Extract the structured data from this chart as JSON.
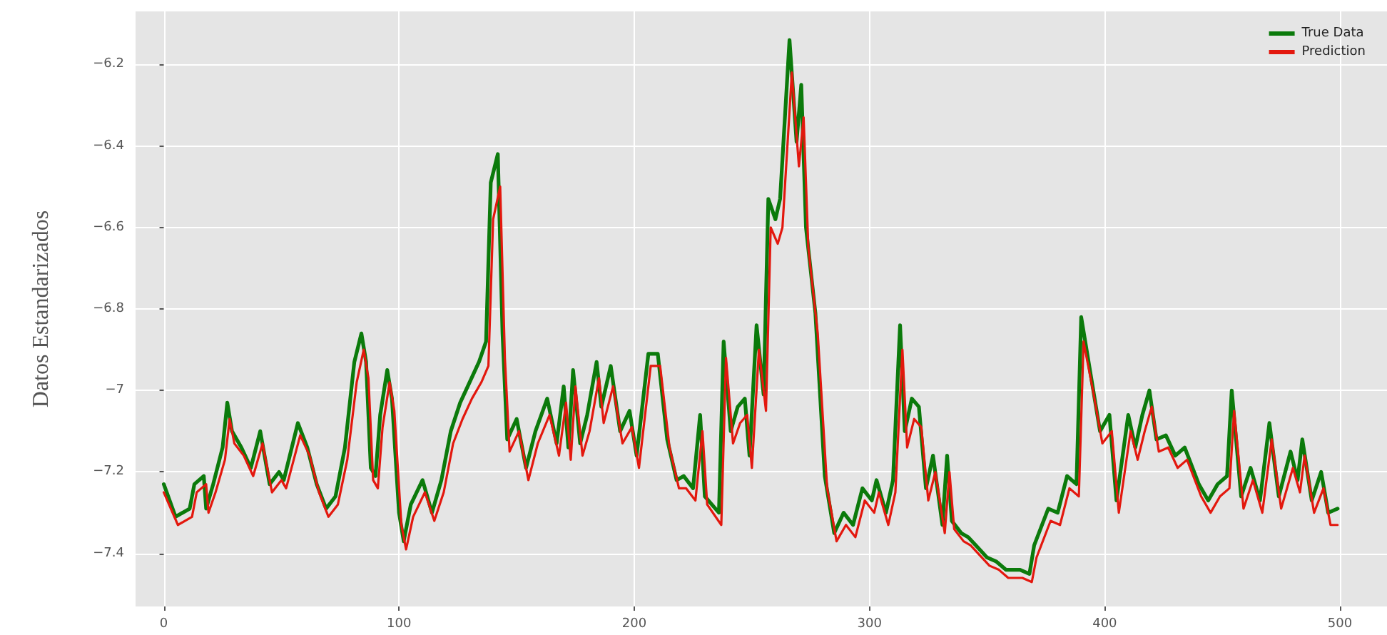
{
  "chart_data": {
    "type": "line",
    "ylabel": "Datos Estandarizados",
    "xlim": [
      -12,
      520
    ],
    "ylim": [
      -7.53,
      -6.07
    ],
    "xticks": [
      0,
      100,
      200,
      300,
      400,
      500
    ],
    "yticks": [
      -7.4,
      -7.2,
      -7.0,
      -6.8,
      -6.6,
      -6.4,
      -6.2
    ],
    "grid": true,
    "legend": "top right",
    "marker": "none",
    "line_style": "solid",
    "series": [
      {
        "name": "True Data",
        "color": "#0b7a0b",
        "x": [
          0,
          5,
          11,
          13,
          17,
          18,
          21,
          25,
          27,
          29,
          33,
          37,
          41,
          45,
          49,
          51,
          57,
          61,
          65,
          69,
          73,
          77,
          81,
          84,
          86,
          88,
          90,
          92,
          95,
          97,
          100,
          102,
          105,
          110,
          114,
          118,
          122,
          126,
          130,
          134,
          137,
          139,
          142,
          144,
          146,
          150,
          154,
          158,
          163,
          167,
          170,
          172,
          174,
          177,
          180,
          184,
          186,
          190,
          194,
          198,
          201,
          206,
          210,
          214,
          218,
          221,
          225,
          228,
          230,
          236,
          238,
          241,
          244,
          247,
          249,
          252,
          255,
          257,
          260,
          262,
          266,
          269,
          271,
          273,
          277,
          281,
          285,
          289,
          293,
          297,
          301,
          303,
          307,
          310,
          313,
          315,
          318,
          321,
          324,
          327,
          331,
          333,
          335,
          339,
          342,
          350,
          354,
          358,
          364,
          368,
          370,
          376,
          380,
          384,
          388,
          390,
          394,
          398,
          402,
          405,
          410,
          413,
          416,
          419,
          422,
          426,
          430,
          434,
          440,
          444,
          448,
          452,
          454,
          458,
          462,
          466,
          470,
          474,
          479,
          482,
          484,
          488,
          492,
          495,
          499
        ],
        "values": [
          -7.23,
          -7.31,
          -7.29,
          -7.23,
          -7.21,
          -7.29,
          -7.23,
          -7.14,
          -7.03,
          -7.1,
          -7.14,
          -7.19,
          -7.1,
          -7.23,
          -7.2,
          -7.22,
          -7.08,
          -7.14,
          -7.23,
          -7.29,
          -7.26,
          -7.14,
          -6.93,
          -6.86,
          -6.93,
          -7.19,
          -7.21,
          -7.06,
          -6.95,
          -7.02,
          -7.3,
          -7.37,
          -7.28,
          -7.22,
          -7.3,
          -7.22,
          -7.1,
          -7.03,
          -6.98,
          -6.93,
          -6.88,
          -6.49,
          -6.42,
          -6.86,
          -7.12,
          -7.07,
          -7.19,
          -7.1,
          -7.02,
          -7.13,
          -6.99,
          -7.14,
          -6.95,
          -7.13,
          -7.06,
          -6.93,
          -7.04,
          -6.94,
          -7.1,
          -7.05,
          -7.16,
          -6.91,
          -6.91,
          -7.12,
          -7.22,
          -7.21,
          -7.24,
          -7.06,
          -7.26,
          -7.3,
          -6.88,
          -7.1,
          -7.04,
          -7.02,
          -7.16,
          -6.84,
          -7.01,
          -6.53,
          -6.58,
          -6.53,
          -6.14,
          -6.39,
          -6.25,
          -6.6,
          -6.81,
          -7.21,
          -7.35,
          -7.3,
          -7.33,
          -7.24,
          -7.27,
          -7.22,
          -7.3,
          -7.22,
          -6.84,
          -7.1,
          -7.02,
          -7.04,
          -7.24,
          -7.16,
          -7.33,
          -7.16,
          -7.32,
          -7.35,
          -7.36,
          -7.41,
          -7.42,
          -7.44,
          -7.44,
          -7.45,
          -7.38,
          -7.29,
          -7.3,
          -7.21,
          -7.23,
          -6.82,
          -6.96,
          -7.1,
          -7.06,
          -7.27,
          -7.06,
          -7.14,
          -7.06,
          -7.0,
          -7.12,
          -7.11,
          -7.16,
          -7.14,
          -7.23,
          -7.27,
          -7.23,
          -7.21,
          -7.0,
          -7.26,
          -7.19,
          -7.27,
          -7.08,
          -7.26,
          -7.15,
          -7.22,
          -7.12,
          -7.27,
          -7.2,
          -7.3,
          -7.29
        ]
      },
      {
        "name": "Prediction",
        "color": "#e3180e",
        "x": [
          0,
          6,
          12,
          14,
          18,
          19,
          22,
          26,
          28,
          30,
          34,
          38,
          42,
          46,
          50,
          52,
          58,
          62,
          66,
          70,
          74,
          78,
          82,
          85,
          87,
          89,
          91,
          93,
          96,
          98,
          101,
          103,
          106,
          111,
          115,
          119,
          123,
          127,
          131,
          135,
          138,
          140,
          143,
          145,
          147,
          151,
          155,
          159,
          164,
          168,
          171,
          173,
          175,
          178,
          181,
          185,
          187,
          191,
          195,
          199,
          202,
          207,
          211,
          215,
          219,
          222,
          226,
          229,
          231,
          237,
          239,
          242,
          245,
          248,
          250,
          253,
          256,
          258,
          261,
          263,
          267,
          270,
          272,
          274,
          278,
          282,
          286,
          290,
          294,
          298,
          302,
          304,
          308,
          311,
          314,
          316,
          319,
          322,
          325,
          328,
          332,
          334,
          336,
          340,
          343,
          351,
          355,
          359,
          365,
          369,
          371,
          377,
          381,
          385,
          389,
          391,
          395,
          399,
          403,
          406,
          411,
          414,
          417,
          420,
          423,
          427,
          431,
          435,
          441,
          445,
          449,
          453,
          455,
          459,
          463,
          467,
          471,
          475,
          480,
          483,
          485,
          489,
          493,
          496,
          499
        ],
        "values": [
          -7.25,
          -7.33,
          -7.31,
          -7.25,
          -7.23,
          -7.3,
          -7.25,
          -7.17,
          -7.07,
          -7.13,
          -7.16,
          -7.21,
          -7.13,
          -7.25,
          -7.22,
          -7.24,
          -7.11,
          -7.16,
          -7.25,
          -7.31,
          -7.28,
          -7.17,
          -6.98,
          -6.9,
          -6.97,
          -7.22,
          -7.24,
          -7.09,
          -6.98,
          -7.05,
          -7.33,
          -7.39,
          -7.31,
          -7.25,
          -7.32,
          -7.25,
          -7.13,
          -7.07,
          -7.02,
          -6.98,
          -6.94,
          -6.58,
          -6.5,
          -6.92,
          -7.15,
          -7.1,
          -7.22,
          -7.13,
          -7.06,
          -7.16,
          -7.03,
          -7.17,
          -6.99,
          -7.16,
          -7.1,
          -6.97,
          -7.08,
          -6.99,
          -7.13,
          -7.09,
          -7.19,
          -6.94,
          -6.94,
          -7.14,
          -7.24,
          -7.24,
          -7.27,
          -7.1,
          -7.28,
          -7.33,
          -6.92,
          -7.13,
          -7.08,
          -7.06,
          -7.19,
          -6.9,
          -7.05,
          -6.6,
          -6.64,
          -6.6,
          -6.22,
          -6.45,
          -6.33,
          -6.65,
          -6.86,
          -7.24,
          -7.37,
          -7.33,
          -7.36,
          -7.27,
          -7.3,
          -7.25,
          -7.33,
          -7.25,
          -6.9,
          -7.14,
          -7.07,
          -7.09,
          -7.27,
          -7.2,
          -7.35,
          -7.2,
          -7.34,
          -7.37,
          -7.38,
          -7.43,
          -7.44,
          -7.46,
          -7.46,
          -7.47,
          -7.41,
          -7.32,
          -7.33,
          -7.24,
          -7.26,
          -6.88,
          -7.0,
          -7.13,
          -7.1,
          -7.3,
          -7.1,
          -7.17,
          -7.1,
          -7.04,
          -7.15,
          -7.14,
          -7.19,
          -7.17,
          -7.26,
          -7.3,
          -7.26,
          -7.24,
          -7.05,
          -7.29,
          -7.22,
          -7.3,
          -7.12,
          -7.29,
          -7.19,
          -7.25,
          -7.16,
          -7.3,
          -7.24,
          -7.33,
          -7.33
        ]
      }
    ]
  }
}
